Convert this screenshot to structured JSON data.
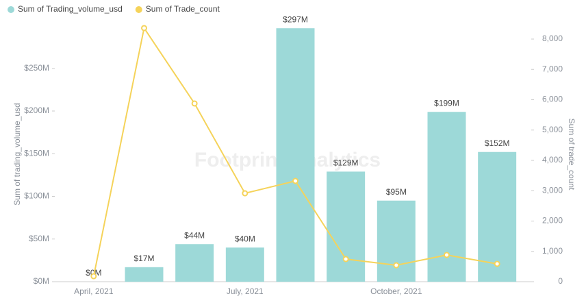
{
  "chart_data": {
    "type": "bar_line",
    "legend": "top-left",
    "watermark": "Footprint Analytics",
    "ylabel": "Sum of trading_volume_usd",
    "y2label": "Sum of trade_count",
    "categories": [
      "April, 2021",
      null,
      null,
      "July, 2021",
      null,
      null,
      "October, 2021",
      null,
      null
    ],
    "ylim": [
      0,
      306000000
    ],
    "yticks": [
      {
        "value": 0,
        "label": "$0M"
      },
      {
        "value": 50000000,
        "label": "$50M"
      },
      {
        "value": 100000000,
        "label": "$100M"
      },
      {
        "value": 150000000,
        "label": "$150M"
      },
      {
        "value": 200000000,
        "label": "$200M"
      },
      {
        "value": 250000000,
        "label": "$250M"
      }
    ],
    "y2lim": [
      0,
      8610
    ],
    "y2ticks": [
      0,
      {
        "value": 1000,
        "label": "1,000"
      },
      {
        "value": 2000,
        "label": "2,000"
      },
      {
        "value": 3000,
        "label": "3,000"
      },
      {
        "value": 4000,
        "label": "4,000"
      },
      {
        "value": 5000,
        "label": "5,000"
      },
      {
        "value": 6000,
        "label": "6,000"
      },
      {
        "value": 7000,
        "label": "7,000"
      },
      {
        "value": 8000,
        "label": "8,000"
      }
    ],
    "series": [
      {
        "name": "Sum of Trading_volume_usd",
        "type": "bar",
        "color": "#9dd9d8",
        "values": [
          0,
          17000000,
          44000000,
          40000000,
          297000000,
          129000000,
          95000000,
          199000000,
          152000000
        ],
        "value_labels": [
          "$0M",
          "$17M",
          "$44M",
          "$40M",
          "$297M",
          "$129M",
          "$95M",
          "$199M",
          "$152M"
        ]
      },
      {
        "name": "Sum of Trade_count",
        "type": "line",
        "axis": "y2",
        "color": "#f5d35a",
        "values": [
          180,
          8362,
          5876,
          2915,
          3322,
          746,
          542,
          881,
          588
        ]
      }
    ]
  }
}
